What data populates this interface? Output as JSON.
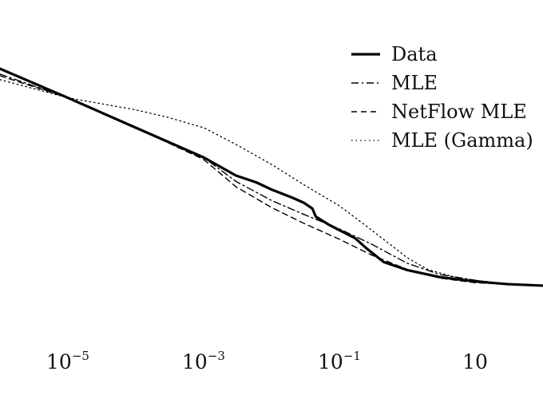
{
  "chart_data": {
    "type": "line",
    "title": "",
    "xlabel": "",
    "ylabel": "",
    "x_scale": "log",
    "y_scale": "log",
    "xlim": [
      1e-06,
      100
    ],
    "ylim": [
      1e-07,
      1
    ],
    "x_ticks": [
      {
        "value": 1e-05,
        "base": "10",
        "exp": "−5"
      },
      {
        "value": 0.001,
        "base": "10",
        "exp": "−3"
      },
      {
        "value": 0.1,
        "base": "10",
        "exp": "−1"
      },
      {
        "value": 10,
        "base": "10",
        "exp": ""
      }
    ],
    "legend": {
      "position": "top-right"
    },
    "series": [
      {
        "name": "Data",
        "style": "solid-thick",
        "color": "#000000",
        "points": [
          [
            1e-06,
            0.3
          ],
          [
            1e-05,
            0.056
          ],
          [
            0.0001,
            0.01
          ],
          [
            0.001,
            0.0018
          ],
          [
            0.003,
            0.00063
          ],
          [
            0.006,
            0.000424
          ],
          [
            0.01,
            0.000282
          ],
          [
            0.02,
            0.000178
          ],
          [
            0.03,
            0.000131
          ],
          [
            0.04,
            9.4e-05
          ],
          [
            0.045,
            5.9e-05
          ],
          [
            0.07,
            3.7e-05
          ],
          [
            0.1,
            2.7e-05
          ],
          [
            0.17,
            1.7e-05
          ],
          [
            0.25,
            9.5e-06
          ],
          [
            0.45,
            4.3e-06
          ],
          [
            1,
            2.7e-06
          ],
          [
            3,
            1.8e-06
          ],
          [
            10,
            1.4e-06
          ],
          [
            30,
            1.2e-06
          ],
          [
            100,
            1.1e-06
          ]
        ]
      },
      {
        "name": "MLE",
        "style": "dashdot",
        "color": "#000000",
        "points": [
          [
            1e-06,
            0.22
          ],
          [
            1e-05,
            0.056
          ],
          [
            0.0001,
            0.01
          ],
          [
            0.001,
            0.0018
          ],
          [
            0.003,
            0.00045
          ],
          [
            0.01,
            0.00015
          ],
          [
            0.03,
            6.7e-05
          ],
          [
            0.1,
            2.9e-05
          ],
          [
            0.3,
            1.2e-05
          ],
          [
            1,
            4e-06
          ],
          [
            3,
            2.1e-06
          ],
          [
            10,
            1.5e-06
          ],
          [
            30,
            1.2e-06
          ],
          [
            100,
            1.1e-06
          ]
        ]
      },
      {
        "name": "NetFlow MLE",
        "style": "dashed",
        "color": "#000000",
        "points": [
          [
            1e-06,
            0.2
          ],
          [
            1e-05,
            0.056
          ],
          [
            0.0001,
            0.01
          ],
          [
            0.001,
            0.0016
          ],
          [
            0.003,
            0.00033
          ],
          [
            0.01,
            0.0001
          ],
          [
            0.03,
            4e-05
          ],
          [
            0.1,
            1.6e-05
          ],
          [
            0.3,
            6.4e-06
          ],
          [
            1,
            2.8e-06
          ],
          [
            3,
            1.7e-06
          ],
          [
            10,
            1.3e-06
          ],
          [
            30,
            1.2e-06
          ],
          [
            100,
            1.1e-06
          ]
        ]
      },
      {
        "name": "MLE (Gamma)",
        "style": "dotted",
        "color": "#000000",
        "points": [
          [
            1e-06,
            0.16
          ],
          [
            1e-05,
            0.056
          ],
          [
            0.0001,
            0.028
          ],
          [
            0.0003,
            0.0181
          ],
          [
            0.001,
            0.01
          ],
          [
            0.003,
            0.0038
          ],
          [
            0.01,
            0.0012
          ],
          [
            0.03,
            0.00037
          ],
          [
            0.1,
            0.00011
          ],
          [
            0.3,
            2.7e-05
          ],
          [
            1,
            5.5e-06
          ],
          [
            2,
            2.8e-06
          ],
          [
            5,
            1.8e-06
          ],
          [
            10,
            1.5e-06
          ],
          [
            30,
            1.2e-06
          ],
          [
            100,
            1.1e-06
          ]
        ]
      }
    ]
  }
}
